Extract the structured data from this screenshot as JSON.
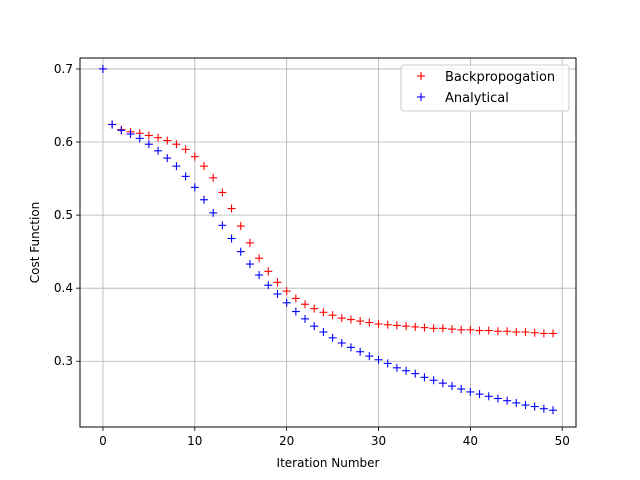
{
  "chart_data": {
    "type": "scatter",
    "marker": "+",
    "xlabel": "Iteration Number",
    "ylabel": "Cost Function",
    "xlim": [
      -2.5,
      51.5
    ],
    "ylim": [
      0.21,
      0.715
    ],
    "xticks": [
      0,
      10,
      20,
      30,
      40,
      50
    ],
    "yticks": [
      0.3,
      0.4,
      0.5,
      0.6,
      0.7
    ],
    "grid": true,
    "legend_position": "top-right",
    "series": [
      {
        "name": "Backpropogation",
        "color": "#ff0000",
        "x": [
          0,
          1,
          2,
          3,
          4,
          5,
          6,
          7,
          8,
          9,
          10,
          11,
          12,
          13,
          14,
          15,
          16,
          17,
          18,
          19,
          20,
          21,
          22,
          23,
          24,
          25,
          26,
          27,
          28,
          29,
          30,
          31,
          32,
          33,
          34,
          35,
          36,
          37,
          38,
          39,
          40,
          41,
          42,
          43,
          44,
          45,
          46,
          47,
          48,
          49
        ],
        "y": [
          0.7,
          0.624,
          0.617,
          0.614,
          0.612,
          0.609,
          0.606,
          0.602,
          0.597,
          0.59,
          0.58,
          0.567,
          0.551,
          0.531,
          0.509,
          0.485,
          0.462,
          0.441,
          0.423,
          0.408,
          0.396,
          0.386,
          0.378,
          0.372,
          0.367,
          0.363,
          0.359,
          0.357,
          0.355,
          0.353,
          0.351,
          0.35,
          0.349,
          0.348,
          0.347,
          0.346,
          0.345,
          0.345,
          0.344,
          0.343,
          0.343,
          0.342,
          0.342,
          0.341,
          0.341,
          0.34,
          0.34,
          0.339,
          0.338,
          0.338
        ]
      },
      {
        "name": "Analytical",
        "color": "#0000ff",
        "x": [
          0,
          1,
          2,
          3,
          4,
          5,
          6,
          7,
          8,
          9,
          10,
          11,
          12,
          13,
          14,
          15,
          16,
          17,
          18,
          19,
          20,
          21,
          22,
          23,
          24,
          25,
          26,
          27,
          28,
          29,
          30,
          31,
          32,
          33,
          34,
          35,
          36,
          37,
          38,
          39,
          40,
          41,
          42,
          43,
          44,
          45,
          46,
          47,
          48,
          49
        ],
        "y": [
          0.7,
          0.624,
          0.616,
          0.611,
          0.605,
          0.597,
          0.588,
          0.578,
          0.567,
          0.553,
          0.538,
          0.521,
          0.503,
          0.486,
          0.468,
          0.45,
          0.433,
          0.418,
          0.404,
          0.392,
          0.38,
          0.368,
          0.358,
          0.348,
          0.34,
          0.332,
          0.325,
          0.319,
          0.313,
          0.307,
          0.302,
          0.297,
          0.291,
          0.287,
          0.283,
          0.278,
          0.274,
          0.27,
          0.266,
          0.262,
          0.258,
          0.255,
          0.252,
          0.249,
          0.246,
          0.243,
          0.24,
          0.238,
          0.235,
          0.233
        ]
      }
    ]
  }
}
